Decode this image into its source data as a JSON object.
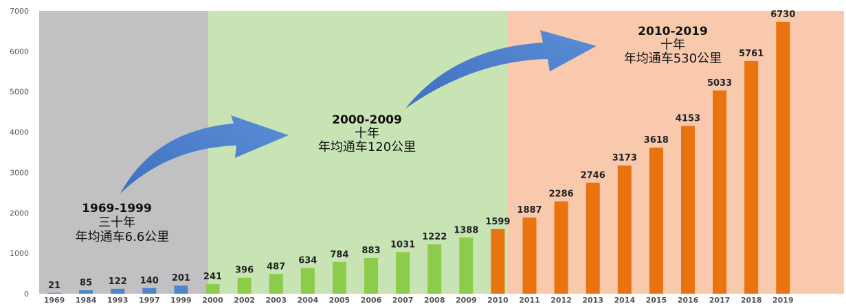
{
  "colors": {
    "era1_bg": "#c1c0c2",
    "era2_bg": "#c8e4b4",
    "era3_bg": "#f8c9ac",
    "era1_bar": "#4f86c6",
    "era2_bar": "#8ccc4a",
    "era3_bar": "#e9730f",
    "arrow": "#4a7cc9"
  },
  "chart_data": {
    "type": "bar",
    "categories": [
      "1969",
      "1984",
      "1993",
      "1997",
      "1999",
      "2000",
      "2002",
      "2003",
      "2004",
      "2005",
      "2006",
      "2007",
      "2008",
      "2009",
      "2010",
      "2011",
      "2012",
      "2013",
      "2014",
      "2015",
      "2016",
      "2017",
      "2018",
      "2019"
    ],
    "values": [
      21,
      85,
      122,
      140,
      201,
      241,
      396,
      487,
      634,
      784,
      883,
      1031,
      1222,
      1388,
      1599,
      1887,
      2286,
      2746,
      3173,
      3618,
      4153,
      5033,
      5761,
      6730
    ],
    "data_labels": [
      "21",
      "85",
      "122",
      "140",
      "201",
      "241",
      "396",
      "487",
      "634",
      "784",
      "883",
      "1031",
      "1222",
      "1388",
      "1599",
      "1887",
      "2286",
      "2746",
      "3173",
      "3618",
      "4153",
      "5033",
      "5761",
      "6730"
    ],
    "ylim": [
      0,
      7000
    ],
    "yticks": [
      "0",
      "1000",
      "2000",
      "3000",
      "4000",
      "5000",
      "6000",
      "7000"
    ],
    "grid": false,
    "eras": [
      {
        "start": 0,
        "end": 4,
        "title": "1969-1999",
        "line2": "三十年",
        "line3": "年均通车6.6公里"
      },
      {
        "start": 5,
        "end": 13,
        "title": "2000-2009",
        "line2": "十年",
        "line3": "年均通车120公里"
      },
      {
        "start": 14,
        "end": 23,
        "title": "2010-2019",
        "line2": "十年",
        "line3": "年均通车530公里"
      }
    ]
  }
}
